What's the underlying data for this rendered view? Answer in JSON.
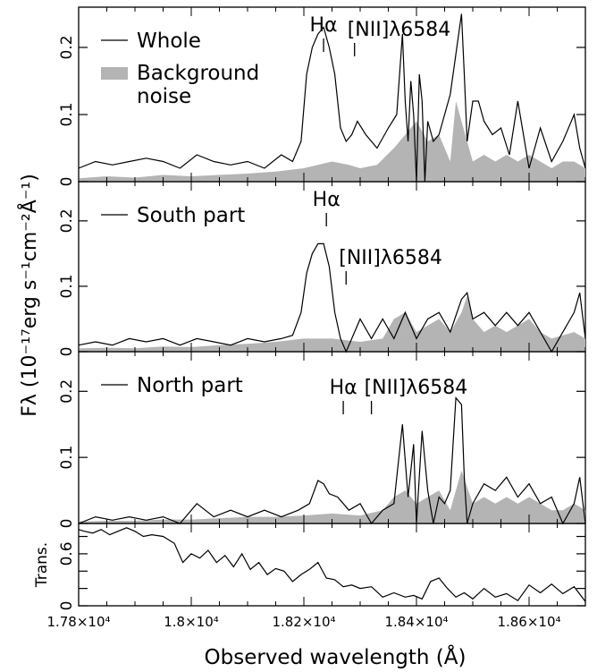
{
  "figure": {
    "y_axis_label": "Fλ (10⁻¹⁷erg s⁻¹cm⁻²Å⁻¹)",
    "x_axis_label": "Observed wavelength (Å)",
    "colors": {
      "line": "#000000",
      "noise_fill": "#b4b4b4"
    }
  },
  "chart_data": [
    {
      "type": "line",
      "panel": "Whole",
      "xlim": [
        17800,
        18700
      ],
      "ylim": [
        0,
        0.26
      ],
      "yticks": [
        0,
        0.1,
        0.2
      ],
      "ytick_labels": [
        "0",
        "0.1",
        "0.2"
      ],
      "legend": [
        "Whole",
        "Background noise"
      ],
      "legend_position": "top-left",
      "annotations": [
        {
          "text": "Hα",
          "x": 18235
        },
        {
          "text": "[NII]λ6584",
          "x": 18290
        }
      ],
      "series": [
        {
          "name": "Whole",
          "style": "line",
          "x": [
            17800,
            17830,
            17860,
            17890,
            17920,
            17950,
            17980,
            18010,
            18040,
            18070,
            18100,
            18130,
            18160,
            18180,
            18195,
            18205,
            18215,
            18225,
            18235,
            18245,
            18255,
            18265,
            18275,
            18285,
            18295,
            18310,
            18330,
            18350,
            18365,
            18375,
            18380,
            18385,
            18390,
            18395,
            18400,
            18405,
            18410,
            18415,
            18420,
            18430,
            18440,
            18450,
            18460,
            18470,
            18480,
            18485,
            18490,
            18500,
            18510,
            18520,
            18535,
            18550,
            18565,
            18580,
            18600,
            18620,
            18640,
            18660,
            18680,
            18690,
            18700
          ],
          "y": [
            0.02,
            0.03,
            0.025,
            0.03,
            0.035,
            0.03,
            0.02,
            0.04,
            0.03,
            0.025,
            0.03,
            0.02,
            0.04,
            0.03,
            0.06,
            0.16,
            0.2,
            0.22,
            0.23,
            0.2,
            0.16,
            0.08,
            0.06,
            0.07,
            0.09,
            0.07,
            0.05,
            0.08,
            0.1,
            0.22,
            0.12,
            0.06,
            0.15,
            0.1,
            0.0,
            0.16,
            0.12,
            0.0,
            0.09,
            0.06,
            0.07,
            0.1,
            0.13,
            0.19,
            0.25,
            0.16,
            0.06,
            0.12,
            0.12,
            0.09,
            0.07,
            0.08,
            0.04,
            0.12,
            0.02,
            0.08,
            0.03,
            0.06,
            0.1,
            0.05,
            0.02
          ]
        },
        {
          "name": "Background noise",
          "style": "area",
          "x": [
            17800,
            17850,
            17900,
            17950,
            18000,
            18050,
            18100,
            18150,
            18200,
            18250,
            18280,
            18300,
            18330,
            18360,
            18380,
            18400,
            18420,
            18440,
            18460,
            18470,
            18480,
            18500,
            18520,
            18540,
            18560,
            18580,
            18600,
            18620,
            18640,
            18660,
            18680,
            18700
          ],
          "y": [
            0.005,
            0.008,
            0.006,
            0.01,
            0.008,
            0.01,
            0.012,
            0.015,
            0.02,
            0.03,
            0.025,
            0.02,
            0.025,
            0.05,
            0.07,
            0.09,
            0.06,
            0.07,
            0.03,
            0.12,
            0.09,
            0.03,
            0.04,
            0.03,
            0.04,
            0.03,
            0.04,
            0.03,
            0.02,
            0.03,
            0.03,
            0.02
          ]
        }
      ]
    },
    {
      "type": "line",
      "panel": "South part",
      "xlim": [
        17800,
        18700
      ],
      "ylim": [
        0,
        0.26
      ],
      "yticks": [
        0,
        0.1,
        0.2
      ],
      "ytick_labels": [
        "0",
        "0.1",
        "0.2"
      ],
      "legend": [
        "South part"
      ],
      "legend_position": "top-left",
      "annotations": [
        {
          "text": "Hα",
          "x": 18240
        },
        {
          "text": "[NII]λ6584",
          "x": 18275
        }
      ],
      "series": [
        {
          "name": "South part",
          "style": "line",
          "x": [
            17800,
            17830,
            17860,
            17890,
            17920,
            17950,
            17980,
            18010,
            18040,
            18070,
            18100,
            18130,
            18160,
            18180,
            18195,
            18205,
            18215,
            18225,
            18235,
            18245,
            18255,
            18265,
            18275,
            18285,
            18300,
            18320,
            18340,
            18360,
            18380,
            18400,
            18420,
            18440,
            18460,
            18480,
            18490,
            18500,
            18520,
            18540,
            18560,
            18580,
            18600,
            18620,
            18640,
            18660,
            18680,
            18690,
            18700
          ],
          "y": [
            0.01,
            0.015,
            0.01,
            0.02,
            0.015,
            0.02,
            0.01,
            0.02,
            0.015,
            0.01,
            0.02,
            0.015,
            0.02,
            0.025,
            0.06,
            0.12,
            0.15,
            0.165,
            0.165,
            0.13,
            0.06,
            0.02,
            0.0,
            0.02,
            0.05,
            0.02,
            0.05,
            0.02,
            0.06,
            0.02,
            0.05,
            0.06,
            0.03,
            0.08,
            0.09,
            0.05,
            0.06,
            0.04,
            0.06,
            0.04,
            0.06,
            0.03,
            0.0,
            0.03,
            0.06,
            0.09,
            0.02
          ]
        },
        {
          "name": "Background noise",
          "style": "area",
          "x": [
            17800,
            17850,
            17900,
            17950,
            18000,
            18050,
            18100,
            18150,
            18200,
            18250,
            18300,
            18340,
            18360,
            18380,
            18400,
            18420,
            18440,
            18460,
            18480,
            18490,
            18500,
            18520,
            18540,
            18560,
            18580,
            18600,
            18620,
            18640,
            18660,
            18680,
            18700
          ],
          "y": [
            0.005,
            0.006,
            0.005,
            0.008,
            0.007,
            0.01,
            0.012,
            0.015,
            0.02,
            0.02,
            0.015,
            0.02,
            0.05,
            0.06,
            0.03,
            0.04,
            0.05,
            0.03,
            0.06,
            0.085,
            0.05,
            0.03,
            0.04,
            0.03,
            0.04,
            0.05,
            0.03,
            0.02,
            0.025,
            0.03,
            0.02
          ]
        }
      ]
    },
    {
      "type": "line",
      "panel": "North part",
      "xlim": [
        17800,
        18700
      ],
      "ylim": [
        0,
        0.26
      ],
      "yticks": [
        0,
        0.1,
        0.2
      ],
      "ytick_labels": [
        "0",
        "0.1",
        "0.2"
      ],
      "legend": [
        "North part"
      ],
      "legend_position": "top-left",
      "annotations": [
        {
          "text": "Hα",
          "x": 18270
        },
        {
          "text": "[NII]λ6584",
          "x": 18320
        }
      ],
      "series": [
        {
          "name": "North part",
          "style": "line",
          "x": [
            17800,
            17830,
            17860,
            17890,
            17920,
            17950,
            17980,
            18010,
            18040,
            18070,
            18100,
            18130,
            18160,
            18190,
            18210,
            18225,
            18235,
            18245,
            18260,
            18280,
            18300,
            18320,
            18340,
            18360,
            18375,
            18385,
            18395,
            18400,
            18410,
            18420,
            18430,
            18440,
            18450,
            18460,
            18470,
            18480,
            18485,
            18490,
            18500,
            18520,
            18540,
            18560,
            18580,
            18600,
            18620,
            18640,
            18660,
            18680,
            18690,
            18700
          ],
          "y": [
            0.0,
            0.01,
            0.005,
            0.01,
            0.005,
            0.01,
            0.0,
            0.03,
            0.01,
            0.02,
            0.01,
            0.02,
            0.01,
            0.02,
            0.03,
            0.065,
            0.06,
            0.045,
            0.04,
            0.02,
            0.03,
            0.0,
            0.02,
            0.03,
            0.15,
            0.04,
            0.12,
            0.0,
            0.14,
            0.05,
            0.0,
            0.04,
            0.03,
            0.05,
            0.19,
            0.18,
            0.07,
            0.0,
            0.03,
            0.06,
            0.05,
            0.07,
            0.04,
            0.06,
            0.03,
            0.04,
            0.0,
            0.03,
            0.07,
            0.0
          ]
        },
        {
          "name": "Background noise",
          "style": "area",
          "x": [
            17800,
            17850,
            17900,
            17950,
            18000,
            18050,
            18100,
            18150,
            18200,
            18250,
            18300,
            18340,
            18360,
            18380,
            18400,
            18420,
            18440,
            18460,
            18480,
            18500,
            18520,
            18540,
            18560,
            18580,
            18600,
            18620,
            18640,
            18660,
            18680,
            18700
          ],
          "y": [
            0.003,
            0.004,
            0.004,
            0.006,
            0.006,
            0.008,
            0.01,
            0.01,
            0.012,
            0.015,
            0.012,
            0.02,
            0.04,
            0.05,
            0.03,
            0.04,
            0.05,
            0.02,
            0.08,
            0.03,
            0.04,
            0.03,
            0.04,
            0.03,
            0.04,
            0.03,
            0.02,
            0.02,
            0.03,
            0.02
          ]
        }
      ]
    },
    {
      "type": "line",
      "panel": "Transmission",
      "ylabel": "Trans.",
      "xlabel": "Observed wavelength (Å)",
      "xlim": [
        17800,
        18700
      ],
      "ylim": [
        0,
        0.95
      ],
      "yticks": [
        0,
        0.2,
        0.4,
        0.6,
        0.8
      ],
      "ytick_labels": [
        "0",
        "",
        "",
        "0.6",
        ""
      ],
      "xticks": [
        17800,
        18000,
        18200,
        18400,
        18600
      ],
      "xtick_labels": [
        "1.78×10⁴",
        "1.8×10⁴",
        "1.82×10⁴",
        "1.84×10⁴",
        "1.86×10⁴"
      ],
      "series": [
        {
          "name": "Transmission",
          "style": "line",
          "x": [
            17800,
            17810,
            17825,
            17840,
            17855,
            17870,
            17885,
            17900,
            17915,
            17930,
            17950,
            17970,
            17985,
            18000,
            18015,
            18030,
            18045,
            18060,
            18075,
            18090,
            18105,
            18120,
            18135,
            18150,
            18165,
            18180,
            18195,
            18210,
            18225,
            18240,
            18255,
            18270,
            18285,
            18300,
            18320,
            18340,
            18360,
            18380,
            18395,
            18410,
            18425,
            18440,
            18455,
            18470,
            18485,
            18500,
            18520,
            18540,
            18560,
            18580,
            18600,
            18620,
            18640,
            18660,
            18680,
            18700
          ],
          "y": [
            0.88,
            0.86,
            0.84,
            0.88,
            0.82,
            0.86,
            0.9,
            0.86,
            0.8,
            0.82,
            0.8,
            0.72,
            0.5,
            0.6,
            0.55,
            0.64,
            0.5,
            0.58,
            0.45,
            0.6,
            0.42,
            0.5,
            0.36,
            0.43,
            0.4,
            0.28,
            0.36,
            0.42,
            0.5,
            0.32,
            0.3,
            0.22,
            0.24,
            0.2,
            0.22,
            0.1,
            0.15,
            0.1,
            0.12,
            0.08,
            0.28,
            0.32,
            0.2,
            0.1,
            0.15,
            0.08,
            0.2,
            0.1,
            0.14,
            0.06,
            0.24,
            0.15,
            0.25,
            0.14,
            0.22,
            0.05
          ]
        }
      ]
    }
  ]
}
